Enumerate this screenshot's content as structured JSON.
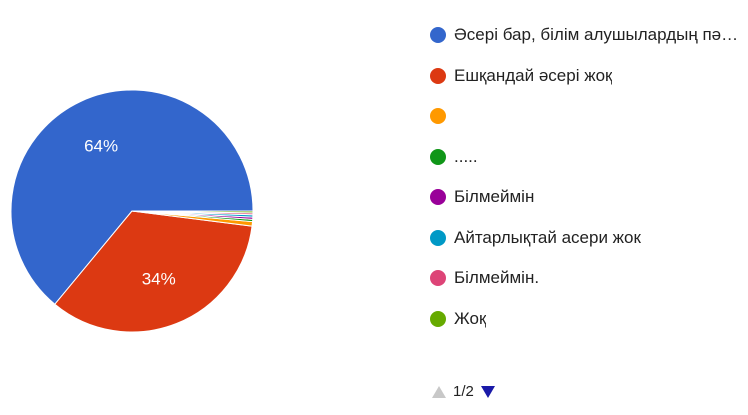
{
  "chart_data": {
    "type": "pie",
    "slices": [
      {
        "label": "Әсері бар, білім алушылардың пәнд…",
        "value": 64,
        "color": "#3366cc",
        "data_label": "64%"
      },
      {
        "label": "Ешқандай әсері жоқ",
        "value": 34,
        "color": "#dc3912",
        "data_label": "34%"
      },
      {
        "label": "",
        "value": 0.6,
        "color": "#ff9900",
        "data_label": ""
      },
      {
        "label": ".....",
        "value": 0.3,
        "color": "#109618",
        "data_label": ""
      },
      {
        "label": "Білмеймін",
        "value": 0.3,
        "color": "#990099",
        "data_label": ""
      },
      {
        "label": "Айтарлықтай асери жок",
        "value": 0.3,
        "color": "#0099c6",
        "data_label": ""
      },
      {
        "label": "Білмеймін.",
        "value": 0.25,
        "color": "#dd4477",
        "data_label": ""
      },
      {
        "label": "Жоқ",
        "value": 0.25,
        "color": "#66aa00",
        "data_label": ""
      }
    ],
    "legend_position": "right"
  },
  "pager": {
    "text": "1/2",
    "prev_icon": "arrow-up-icon",
    "next_icon": "arrow-down-icon"
  }
}
